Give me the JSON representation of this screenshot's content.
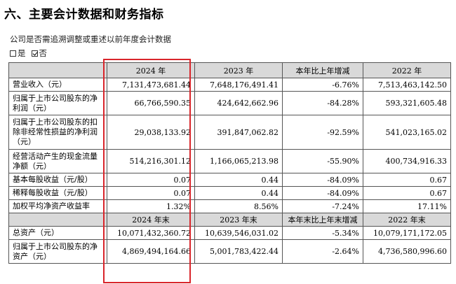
{
  "title": "六、主要会计数据和财务指标",
  "subtitle": "公司是否需追溯调整或重述以前年度会计数据",
  "choice": {
    "yes": "是",
    "no": "否"
  },
  "header1": [
    "",
    "2024 年",
    "2023 年",
    "本年比上年增减",
    "2022 年"
  ],
  "rows1": [
    [
      "营业收入（元）",
      "7,131,473,681.44",
      "7,648,176,491.41",
      "-6.76%",
      "7,513,463,142.50"
    ],
    [
      "归属于上市公司股东的净利润（元）",
      "66,766,590.35",
      "424,642,662.96",
      "-84.28%",
      "593,321,605.48"
    ],
    [
      "归属于上市公司股东的扣除非经常性损益的净利润（元）",
      "29,038,133.92",
      "391,847,062.82",
      "-92.59%",
      "541,023,165.02"
    ],
    [
      "经营活动产生的现金流量净额（元）",
      "514,216,301.12",
      "1,166,065,213.98",
      "-55.90%",
      "400,734,916.33"
    ],
    [
      "基本每股收益（元/股）",
      "0.07",
      "0.44",
      "-84.09%",
      "0.67"
    ],
    [
      "稀释每股收益（元/股）",
      "0.07",
      "0.44",
      "-84.09%",
      "0.67"
    ],
    [
      "加权平均净资产收益率",
      "1.32%",
      "8.56%",
      "-7.24%",
      "17.11%"
    ]
  ],
  "header2": [
    "",
    "2024 年末",
    "2023 年末",
    "本年末比上年末增减",
    "2022 年末"
  ],
  "rows2": [
    [
      "总资产（元）",
      "10,071,432,360.72",
      "10,639,546,031.02",
      "-5.34%",
      "10,079,171,172.05"
    ],
    [
      "归属于上市公司股东的净资产（元）",
      "4,869,494,164.66",
      "5,001,783,422.44",
      "-2.64%",
      "4,736,580,996.60"
    ]
  ],
  "highlight_color": "#d9252b"
}
